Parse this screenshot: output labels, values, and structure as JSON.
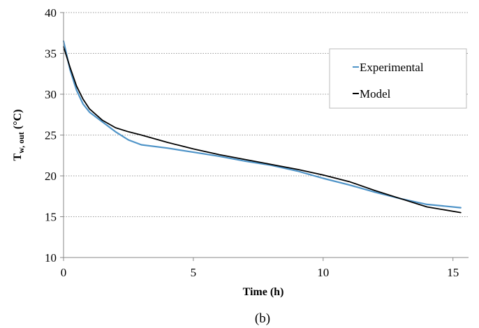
{
  "chart_data": {
    "type": "line",
    "title": "",
    "xlabel": "Time (h)",
    "ylabel": "T w, out (°C)",
    "ylabel_parts": {
      "main": "T",
      "sub": "w, out",
      "unit": " (°C)"
    },
    "xlim": [
      0,
      15.6
    ],
    "ylim": [
      10,
      40
    ],
    "x_ticks": [
      "0",
      "5",
      "10",
      "15"
    ],
    "y_ticks": [
      "10",
      "15",
      "20",
      "25",
      "30",
      "35",
      "40"
    ],
    "grid": {
      "horizontal": true,
      "style": "dotted"
    },
    "legend_position": "top-right",
    "series": [
      {
        "name": "Experimental",
        "color": "#4f94c8",
        "x": [
          0,
          0.25,
          0.5,
          0.75,
          1.0,
          1.5,
          2.0,
          2.5,
          3.0,
          4.0,
          5.0,
          6.0,
          7.0,
          8.0,
          9.0,
          10.0,
          11.0,
          12.0,
          13.0,
          14.0,
          15.3
        ],
        "y": [
          36.5,
          33.0,
          30.5,
          28.8,
          27.8,
          26.6,
          25.4,
          24.4,
          23.8,
          23.4,
          22.9,
          22.4,
          21.8,
          21.3,
          20.6,
          19.7,
          18.9,
          18.0,
          17.2,
          16.5,
          16.1
        ]
      },
      {
        "name": "Model",
        "color": "#000000",
        "x": [
          0,
          0.25,
          0.5,
          0.75,
          1.0,
          1.5,
          2.0,
          2.5,
          3.0,
          4.0,
          5.0,
          6.0,
          7.0,
          8.0,
          9.0,
          10.0,
          11.0,
          12.0,
          13.0,
          14.0,
          15.3
        ],
        "y": [
          35.8,
          33.3,
          31.0,
          29.4,
          28.2,
          26.8,
          25.9,
          25.4,
          25.0,
          24.1,
          23.3,
          22.6,
          22.0,
          21.4,
          20.8,
          20.1,
          19.3,
          18.2,
          17.2,
          16.2,
          15.5
        ]
      }
    ]
  },
  "caption": "(b)"
}
